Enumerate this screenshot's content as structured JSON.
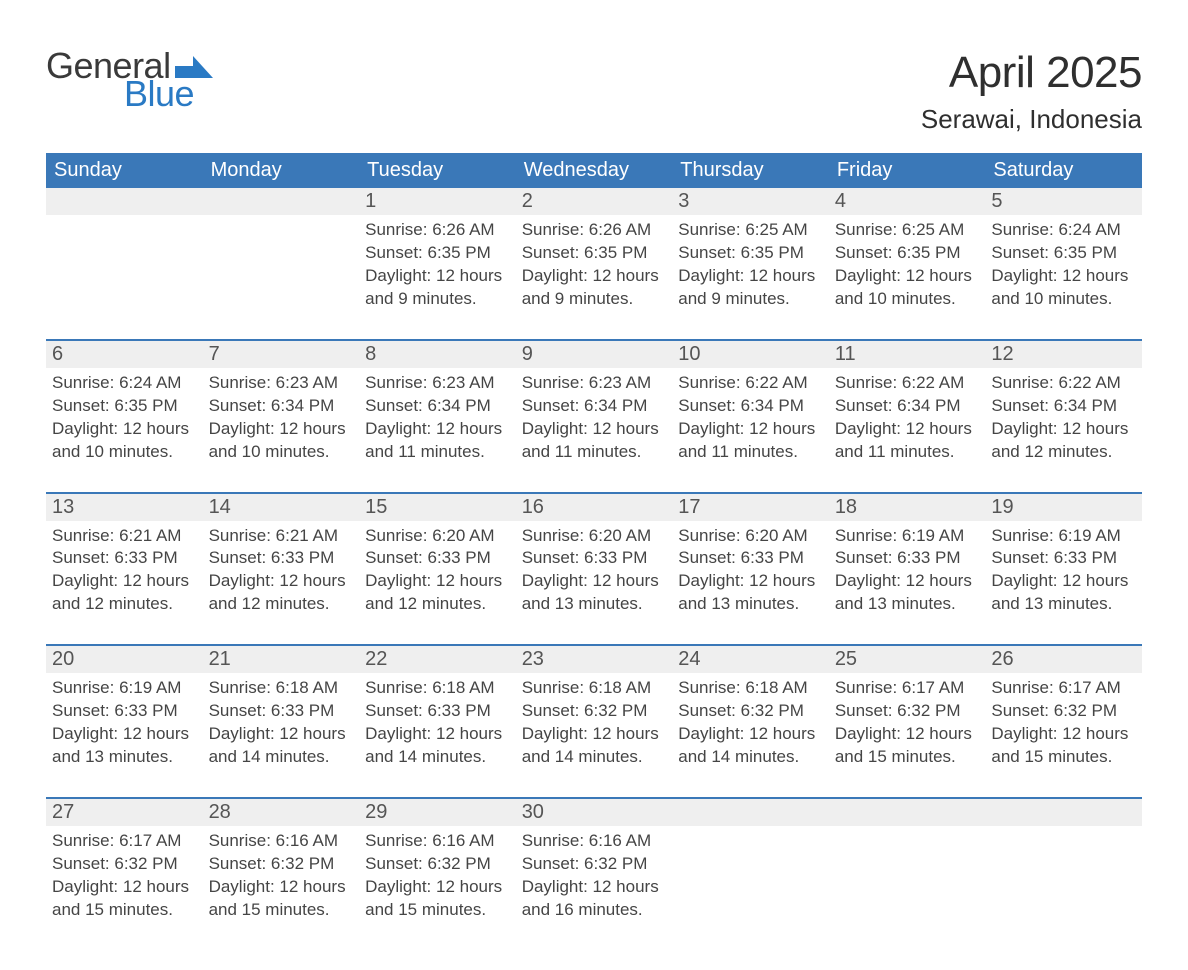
{
  "logo": {
    "word1": "General",
    "word2": "Blue"
  },
  "title": "April 2025",
  "subtitle": "Serawai, Indonesia",
  "colors": {
    "header_bg": "#3a78b8",
    "header_text": "#ffffff",
    "daynum_bg": "#efefef",
    "border": "#3a78b8",
    "logo_blue": "#2a7ac4"
  },
  "weekdays": [
    "Sunday",
    "Monday",
    "Tuesday",
    "Wednesday",
    "Thursday",
    "Friday",
    "Saturday"
  ],
  "weeks": [
    [
      null,
      null,
      {
        "n": "1",
        "sunrise": "Sunrise: 6:26 AM",
        "sunset": "Sunset: 6:35 PM",
        "dl1": "Daylight: 12 hours",
        "dl2": "and 9 minutes."
      },
      {
        "n": "2",
        "sunrise": "Sunrise: 6:26 AM",
        "sunset": "Sunset: 6:35 PM",
        "dl1": "Daylight: 12 hours",
        "dl2": "and 9 minutes."
      },
      {
        "n": "3",
        "sunrise": "Sunrise: 6:25 AM",
        "sunset": "Sunset: 6:35 PM",
        "dl1": "Daylight: 12 hours",
        "dl2": "and 9 minutes."
      },
      {
        "n": "4",
        "sunrise": "Sunrise: 6:25 AM",
        "sunset": "Sunset: 6:35 PM",
        "dl1": "Daylight: 12 hours",
        "dl2": "and 10 minutes."
      },
      {
        "n": "5",
        "sunrise": "Sunrise: 6:24 AM",
        "sunset": "Sunset: 6:35 PM",
        "dl1": "Daylight: 12 hours",
        "dl2": "and 10 minutes."
      }
    ],
    [
      {
        "n": "6",
        "sunrise": "Sunrise: 6:24 AM",
        "sunset": "Sunset: 6:35 PM",
        "dl1": "Daylight: 12 hours",
        "dl2": "and 10 minutes."
      },
      {
        "n": "7",
        "sunrise": "Sunrise: 6:23 AM",
        "sunset": "Sunset: 6:34 PM",
        "dl1": "Daylight: 12 hours",
        "dl2": "and 10 minutes."
      },
      {
        "n": "8",
        "sunrise": "Sunrise: 6:23 AM",
        "sunset": "Sunset: 6:34 PM",
        "dl1": "Daylight: 12 hours",
        "dl2": "and 11 minutes."
      },
      {
        "n": "9",
        "sunrise": "Sunrise: 6:23 AM",
        "sunset": "Sunset: 6:34 PM",
        "dl1": "Daylight: 12 hours",
        "dl2": "and 11 minutes."
      },
      {
        "n": "10",
        "sunrise": "Sunrise: 6:22 AM",
        "sunset": "Sunset: 6:34 PM",
        "dl1": "Daylight: 12 hours",
        "dl2": "and 11 minutes."
      },
      {
        "n": "11",
        "sunrise": "Sunrise: 6:22 AM",
        "sunset": "Sunset: 6:34 PM",
        "dl1": "Daylight: 12 hours",
        "dl2": "and 11 minutes."
      },
      {
        "n": "12",
        "sunrise": "Sunrise: 6:22 AM",
        "sunset": "Sunset: 6:34 PM",
        "dl1": "Daylight: 12 hours",
        "dl2": "and 12 minutes."
      }
    ],
    [
      {
        "n": "13",
        "sunrise": "Sunrise: 6:21 AM",
        "sunset": "Sunset: 6:33 PM",
        "dl1": "Daylight: 12 hours",
        "dl2": "and 12 minutes."
      },
      {
        "n": "14",
        "sunrise": "Sunrise: 6:21 AM",
        "sunset": "Sunset: 6:33 PM",
        "dl1": "Daylight: 12 hours",
        "dl2": "and 12 minutes."
      },
      {
        "n": "15",
        "sunrise": "Sunrise: 6:20 AM",
        "sunset": "Sunset: 6:33 PM",
        "dl1": "Daylight: 12 hours",
        "dl2": "and 12 minutes."
      },
      {
        "n": "16",
        "sunrise": "Sunrise: 6:20 AM",
        "sunset": "Sunset: 6:33 PM",
        "dl1": "Daylight: 12 hours",
        "dl2": "and 13 minutes."
      },
      {
        "n": "17",
        "sunrise": "Sunrise: 6:20 AM",
        "sunset": "Sunset: 6:33 PM",
        "dl1": "Daylight: 12 hours",
        "dl2": "and 13 minutes."
      },
      {
        "n": "18",
        "sunrise": "Sunrise: 6:19 AM",
        "sunset": "Sunset: 6:33 PM",
        "dl1": "Daylight: 12 hours",
        "dl2": "and 13 minutes."
      },
      {
        "n": "19",
        "sunrise": "Sunrise: 6:19 AM",
        "sunset": "Sunset: 6:33 PM",
        "dl1": "Daylight: 12 hours",
        "dl2": "and 13 minutes."
      }
    ],
    [
      {
        "n": "20",
        "sunrise": "Sunrise: 6:19 AM",
        "sunset": "Sunset: 6:33 PM",
        "dl1": "Daylight: 12 hours",
        "dl2": "and 13 minutes."
      },
      {
        "n": "21",
        "sunrise": "Sunrise: 6:18 AM",
        "sunset": "Sunset: 6:33 PM",
        "dl1": "Daylight: 12 hours",
        "dl2": "and 14 minutes."
      },
      {
        "n": "22",
        "sunrise": "Sunrise: 6:18 AM",
        "sunset": "Sunset: 6:33 PM",
        "dl1": "Daylight: 12 hours",
        "dl2": "and 14 minutes."
      },
      {
        "n": "23",
        "sunrise": "Sunrise: 6:18 AM",
        "sunset": "Sunset: 6:32 PM",
        "dl1": "Daylight: 12 hours",
        "dl2": "and 14 minutes."
      },
      {
        "n": "24",
        "sunrise": "Sunrise: 6:18 AM",
        "sunset": "Sunset: 6:32 PM",
        "dl1": "Daylight: 12 hours",
        "dl2": "and 14 minutes."
      },
      {
        "n": "25",
        "sunrise": "Sunrise: 6:17 AM",
        "sunset": "Sunset: 6:32 PM",
        "dl1": "Daylight: 12 hours",
        "dl2": "and 15 minutes."
      },
      {
        "n": "26",
        "sunrise": "Sunrise: 6:17 AM",
        "sunset": "Sunset: 6:32 PM",
        "dl1": "Daylight: 12 hours",
        "dl2": "and 15 minutes."
      }
    ],
    [
      {
        "n": "27",
        "sunrise": "Sunrise: 6:17 AM",
        "sunset": "Sunset: 6:32 PM",
        "dl1": "Daylight: 12 hours",
        "dl2": "and 15 minutes."
      },
      {
        "n": "28",
        "sunrise": "Sunrise: 6:16 AM",
        "sunset": "Sunset: 6:32 PM",
        "dl1": "Daylight: 12 hours",
        "dl2": "and 15 minutes."
      },
      {
        "n": "29",
        "sunrise": "Sunrise: 6:16 AM",
        "sunset": "Sunset: 6:32 PM",
        "dl1": "Daylight: 12 hours",
        "dl2": "and 15 minutes."
      },
      {
        "n": "30",
        "sunrise": "Sunrise: 6:16 AM",
        "sunset": "Sunset: 6:32 PM",
        "dl1": "Daylight: 12 hours",
        "dl2": "and 16 minutes."
      },
      null,
      null,
      null
    ]
  ]
}
